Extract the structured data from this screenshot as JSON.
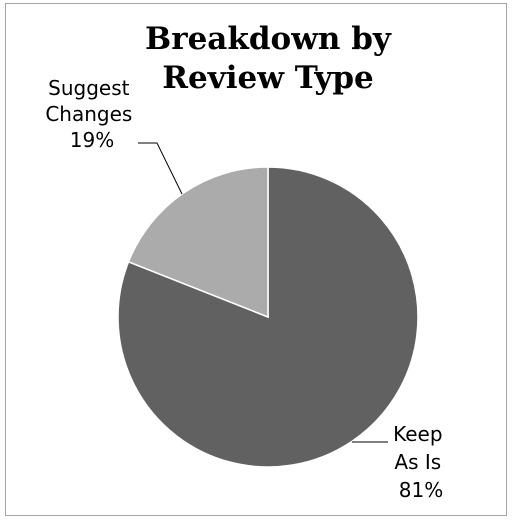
{
  "chart_data": {
    "type": "pie",
    "title_lines": [
      "Breakdown by",
      "Review Type"
    ],
    "slices": [
      {
        "label_lines": [
          "Keep",
          "As Is"
        ],
        "value": 81,
        "display": "81%",
        "color": "#616161"
      },
      {
        "label_lines": [
          "Suggest",
          "Changes"
        ],
        "value": 19,
        "display": "19%",
        "color": "#ababab"
      }
    ],
    "legend": "none"
  }
}
